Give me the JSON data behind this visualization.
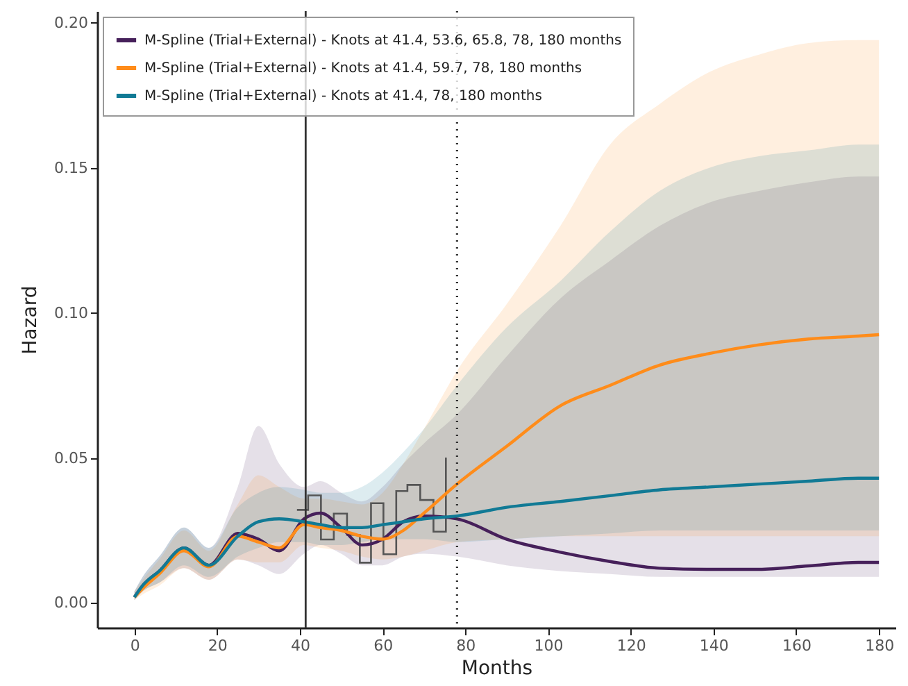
{
  "chart_data": {
    "type": "line",
    "xlabel": "Months",
    "ylabel": "Hazard",
    "xlim": [
      -9,
      184
    ],
    "ylim": [
      -0.0085,
      0.204
    ],
    "xticks": [
      0,
      20,
      40,
      60,
      80,
      100,
      120,
      140,
      160,
      180
    ],
    "yticks": [
      {
        "value": 0,
        "label": "0.00"
      },
      {
        "value": 0.05,
        "label": "0.05"
      },
      {
        "value": 0.1,
        "label": "0.10"
      },
      {
        "value": 0.15,
        "label": "0.15"
      },
      {
        "value": 0.2,
        "label": "0.20"
      }
    ],
    "x": [
      0,
      2,
      6,
      12,
      18,
      25,
      30,
      35,
      41,
      45,
      50,
      55,
      60,
      65,
      70,
      78,
      90,
      103,
      115,
      127,
      139,
      151,
      163,
      175,
      180
    ],
    "legend": "top left",
    "grid": false,
    "line_style": "solid",
    "marker": "none",
    "series": [
      {
        "name": "M-Spline (Trial+External) - Knots at 41.4, 53.6, 65.8, 78, 180 months",
        "color": "#46205a",
        "values": [
          0.002,
          0.006,
          0.011,
          0.019,
          0.013,
          0.024,
          0.022,
          0.018,
          0.029,
          0.031,
          0.026,
          0.02,
          0.022,
          0.028,
          0.03,
          0.029,
          0.022,
          0.0175,
          0.0143,
          0.012,
          0.0116,
          0.0116,
          0.0128,
          0.014,
          0.014
        ],
        "lower": [
          0.001,
          0.004,
          0.007,
          0.012,
          0.008,
          0.015,
          0.013,
          0.01,
          0.017,
          0.02,
          0.017,
          0.013,
          0.013,
          0.016,
          0.017,
          0.016,
          0.013,
          0.011,
          0.01,
          0.009,
          0.009,
          0.009,
          0.009,
          0.009,
          0.009
        ],
        "upper": [
          0.004,
          0.009,
          0.016,
          0.026,
          0.019,
          0.04,
          0.061,
          0.048,
          0.04,
          0.042,
          0.038,
          0.035,
          0.04,
          0.048,
          0.055,
          0.065,
          0.085,
          0.105,
          0.118,
          0.13,
          0.138,
          0.142,
          0.145,
          0.147,
          0.147
        ]
      },
      {
        "name": "M-Spline (Trial+External) - Knots at 41.4, 59.7, 78, 180 months",
        "color": "#ff8c1a",
        "values": [
          0.002,
          0.005,
          0.01,
          0.018,
          0.0125,
          0.023,
          0.021,
          0.019,
          0.027,
          0.026,
          0.025,
          0.023,
          0.022,
          0.025,
          0.031,
          0.041,
          0.054,
          0.068,
          0.075,
          0.082,
          0.086,
          0.089,
          0.091,
          0.092,
          0.0925
        ],
        "lower": [
          0.001,
          0.003,
          0.006,
          0.012,
          0.008,
          0.015,
          0.014,
          0.014,
          0.02,
          0.019,
          0.018,
          0.016,
          0.015,
          0.016,
          0.018,
          0.021,
          0.022,
          0.023,
          0.023,
          0.023,
          0.023,
          0.023,
          0.023,
          0.023,
          0.023
        ],
        "upper": [
          0.004,
          0.008,
          0.015,
          0.025,
          0.018,
          0.034,
          0.044,
          0.04,
          0.036,
          0.036,
          0.035,
          0.034,
          0.038,
          0.048,
          0.06,
          0.08,
          0.103,
          0.13,
          0.158,
          0.172,
          0.183,
          0.189,
          0.193,
          0.194,
          0.194
        ]
      },
      {
        "name": "M-Spline (Trial+External) - Knots at 41.4, 78, 180 months",
        "color": "#117a95",
        "values": [
          0.002,
          0.006,
          0.011,
          0.019,
          0.013,
          0.023,
          0.028,
          0.029,
          0.028,
          0.027,
          0.026,
          0.026,
          0.027,
          0.028,
          0.029,
          0.03,
          0.033,
          0.035,
          0.037,
          0.039,
          0.04,
          0.041,
          0.042,
          0.043,
          0.043
        ],
        "lower": [
          0.001,
          0.004,
          0.007,
          0.013,
          0.009,
          0.016,
          0.019,
          0.021,
          0.021,
          0.02,
          0.02,
          0.021,
          0.022,
          0.022,
          0.022,
          0.021,
          0.022,
          0.023,
          0.024,
          0.025,
          0.025,
          0.025,
          0.025,
          0.025,
          0.025
        ],
        "upper": [
          0.004,
          0.009,
          0.016,
          0.026,
          0.019,
          0.033,
          0.038,
          0.04,
          0.039,
          0.038,
          0.038,
          0.04,
          0.045,
          0.052,
          0.06,
          0.075,
          0.095,
          0.111,
          0.128,
          0.142,
          0.15,
          0.154,
          0.156,
          0.158,
          0.158
        ]
      },
      {
        "type": "step",
        "color": "#555555",
        "x": [
          39.3,
          42.0,
          45.1,
          48.2,
          51.4,
          54.5,
          57.2,
          60.2,
          63.3,
          66.0,
          69.1,
          72.3,
          75.3
        ],
        "values": [
          0.0321,
          0.0371,
          0.0219,
          0.0308,
          0.0235,
          0.0139,
          0.0344,
          0.0168,
          0.0386,
          0.0407,
          0.0355,
          0.0246,
          0.0501
        ]
      }
    ],
    "ref_lines": [
      {
        "axis": "x",
        "value": 41.4,
        "color": "#333333",
        "line_style": "solid"
      },
      {
        "axis": "x",
        "value": 78,
        "color": "#333333",
        "line_style": "dotted"
      }
    ]
  }
}
